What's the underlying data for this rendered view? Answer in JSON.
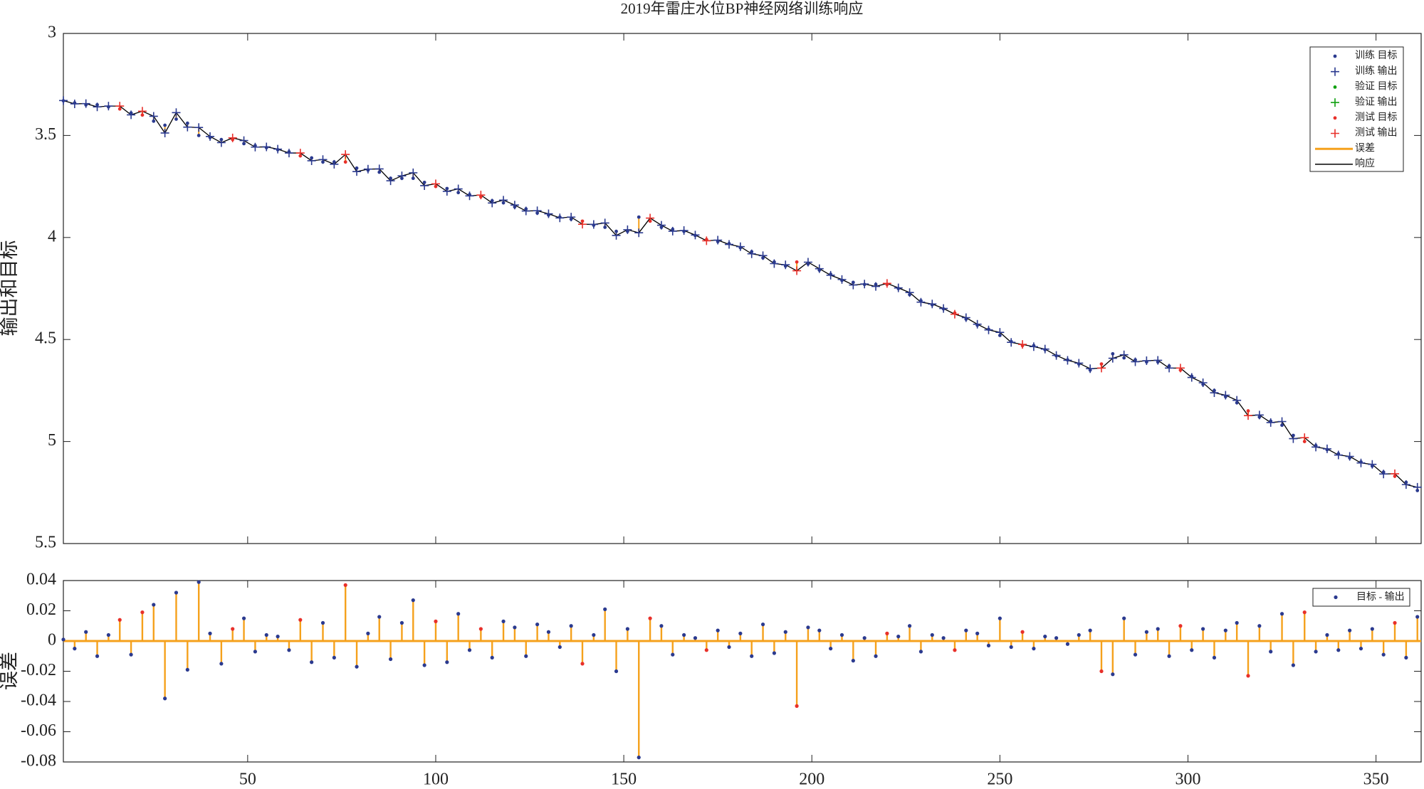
{
  "chart_data": [
    {
      "type": "response",
      "title": "2019年雷庄水位BP神经网络训练响应",
      "ylabel": "输出和目标",
      "xlim": [
        1,
        362
      ],
      "ylim": [
        3,
        5.5
      ],
      "yreverse": true,
      "yticks": [
        3,
        3.5,
        4,
        4.5,
        5,
        5.5
      ],
      "x": [
        1,
        4,
        7,
        10,
        13,
        16,
        19,
        22,
        25,
        28,
        31,
        34,
        37,
        40,
        43,
        46,
        49,
        52,
        55,
        58,
        61,
        64,
        67,
        70,
        73,
        76,
        79,
        82,
        85,
        88,
        91,
        94,
        97,
        100,
        103,
        106,
        109,
        112,
        115,
        118,
        121,
        124,
        127,
        130,
        133,
        136,
        139,
        142,
        145,
        148,
        151,
        154,
        157,
        160,
        163,
        166,
        169,
        172,
        175,
        178,
        181,
        184,
        187,
        190,
        193,
        196,
        199,
        202,
        205,
        208,
        211,
        214,
        217,
        220,
        223,
        226,
        229,
        232,
        235,
        238,
        241,
        244,
        247,
        250,
        253,
        256,
        259,
        262,
        265,
        268,
        271,
        274,
        277,
        280,
        283,
        286,
        289,
        292,
        295,
        298,
        301,
        304,
        307,
        310,
        313,
        316,
        319,
        322,
        325,
        328,
        331,
        334,
        337,
        340,
        343,
        346,
        349,
        352,
        355,
        358,
        361
      ],
      "series": [
        {
          "name": "训练 目标",
          "color": "#2b3a8f",
          "marker": "dot",
          "values": [
            3.33,
            3.34,
            3.35,
            3.35,
            3.36,
            null,
            3.39,
            null,
            3.43,
            3.45,
            3.42,
            3.44,
            3.5,
            3.51,
            3.52,
            null,
            3.54,
            3.55,
            3.56,
            3.57,
            3.58,
            null,
            3.61,
            3.63,
            3.63,
            null,
            3.66,
            3.67,
            3.68,
            3.71,
            3.71,
            3.71,
            3.73,
            null,
            3.76,
            3.78,
            3.79,
            null,
            3.82,
            3.83,
            3.85,
            3.86,
            3.88,
            3.89,
            3.9,
            3.91,
            null,
            3.94,
            3.95,
            3.97,
            3.97,
            3.9,
            null,
            3.95,
            3.96,
            3.97,
            3.99,
            null,
            4.02,
            4.03,
            4.05,
            4.07,
            4.1,
            4.12,
            4.14,
            null,
            4.13,
            4.16,
            4.18,
            4.21,
            4.22,
            4.23,
            4.23,
            null,
            4.25,
            4.28,
            4.31,
            4.33,
            4.35,
            null,
            4.4,
            4.43,
            4.45,
            4.48,
            4.51,
            null,
            4.53,
            4.55,
            4.58,
            4.6,
            4.62,
            4.65,
            null,
            4.57,
            4.59,
            4.6,
            4.61,
            4.61,
            4.63,
            null,
            4.68,
            4.72,
            4.75,
            4.78,
            4.81,
            null,
            4.88,
            4.9,
            4.92,
            4.97,
            null,
            5.02,
            5.04,
            5.06,
            5.08,
            5.1,
            5.12,
            5.15,
            null,
            5.2,
            5.24
          ]
        },
        {
          "name": "训练 输出",
          "color": "#2b3a8f",
          "marker": "plus",
          "values": [
            3.329,
            3.345,
            3.344,
            3.36,
            3.356,
            null,
            3.399,
            null,
            3.406,
            3.488,
            3.388,
            3.459,
            3.461,
            3.505,
            3.535,
            null,
            3.525,
            3.557,
            3.556,
            3.567,
            3.586,
            null,
            3.624,
            3.618,
            3.641,
            null,
            3.677,
            3.665,
            3.664,
            3.722,
            3.698,
            3.683,
            3.746,
            null,
            3.774,
            3.762,
            3.796,
            null,
            3.831,
            3.817,
            3.841,
            3.87,
            3.869,
            3.884,
            3.904,
            3.9,
            null,
            3.936,
            3.929,
            3.99,
            3.962,
            3.977,
            null,
            3.94,
            3.969,
            3.966,
            3.988,
            null,
            4.013,
            4.034,
            4.045,
            4.08,
            4.089,
            4.128,
            4.134,
            null,
            4.121,
            4.153,
            4.185,
            4.206,
            4.233,
            4.228,
            4.24,
            null,
            4.247,
            4.27,
            4.317,
            4.326,
            4.348,
            null,
            4.393,
            4.425,
            4.453,
            4.465,
            4.514,
            null,
            4.535,
            4.547,
            4.578,
            4.602,
            4.616,
            4.643,
            null,
            4.592,
            4.575,
            4.609,
            4.604,
            4.602,
            4.64,
            null,
            4.686,
            4.712,
            4.761,
            4.773,
            4.798,
            null,
            4.87,
            4.907,
            4.902,
            4.986,
            null,
            5.027,
            5.036,
            5.066,
            5.073,
            5.105,
            5.112,
            5.159,
            null,
            5.211,
            5.224
          ]
        },
        {
          "name": "验证 目标",
          "color": "#10a010",
          "marker": "dot"
        },
        {
          "name": "验证 输出",
          "color": "#10a010",
          "marker": "plus"
        },
        {
          "name": "测试 目标",
          "color": "#e8302a",
          "marker": "dot",
          "values": [
            null,
            null,
            null,
            null,
            null,
            3.37,
            null,
            3.4,
            null,
            null,
            null,
            null,
            null,
            null,
            null,
            3.52,
            null,
            null,
            null,
            null,
            null,
            3.6,
            null,
            null,
            null,
            3.63,
            null,
            null,
            null,
            null,
            null,
            null,
            null,
            3.75,
            null,
            null,
            null,
            3.8,
            null,
            null,
            null,
            null,
            null,
            null,
            null,
            null,
            3.92,
            null,
            null,
            null,
            null,
            null,
            3.92,
            null,
            null,
            null,
            null,
            4.01,
            null,
            null,
            null,
            null,
            null,
            null,
            null,
            4.12,
            null,
            null,
            null,
            null,
            null,
            null,
            null,
            4.23,
            null,
            null,
            null,
            null,
            null,
            4.37,
            null,
            null,
            null,
            null,
            null,
            4.53,
            null,
            null,
            null,
            null,
            null,
            null,
            4.62,
            null,
            null,
            null,
            null,
            null,
            null,
            4.65,
            null,
            null,
            null,
            null,
            null,
            4.85,
            null,
            null,
            null,
            null,
            5.0,
            null,
            null,
            null,
            null,
            null,
            null,
            null,
            5.17,
            null,
            null
          ]
        },
        {
          "name": "测试 输出",
          "color": "#e8302a",
          "marker": "plus",
          "values": [
            null,
            null,
            null,
            null,
            null,
            3.356,
            null,
            3.381,
            null,
            null,
            null,
            null,
            null,
            null,
            null,
            3.512,
            null,
            null,
            null,
            null,
            null,
            3.586,
            null,
            null,
            null,
            3.593,
            null,
            null,
            null,
            null,
            null,
            null,
            null,
            3.737,
            null,
            null,
            null,
            3.792,
            null,
            null,
            null,
            null,
            null,
            null,
            null,
            null,
            3.935,
            null,
            null,
            null,
            null,
            null,
            3.905,
            null,
            null,
            null,
            null,
            4.016,
            null,
            null,
            null,
            null,
            null,
            null,
            null,
            4.163,
            null,
            null,
            null,
            null,
            null,
            null,
            null,
            4.225,
            null,
            null,
            null,
            null,
            null,
            4.376,
            null,
            null,
            null,
            null,
            null,
            4.524,
            null,
            null,
            null,
            null,
            null,
            null,
            4.64,
            null,
            null,
            null,
            null,
            null,
            null,
            4.64,
            null,
            null,
            null,
            null,
            null,
            4.873,
            null,
            null,
            null,
            null,
            4.981,
            null,
            null,
            null,
            null,
            null,
            null,
            null,
            5.158,
            null,
            null
          ]
        }
      ],
      "error_line": {
        "name": "误差",
        "color": "#f5a11c"
      },
      "response_line": {
        "name": "响应",
        "color": "#000000"
      }
    },
    {
      "type": "stem",
      "ylabel": "误差",
      "name": "目标 - 输出",
      "color": "#f5a11c",
      "marker_color": "#2b3a8f",
      "xlim": [
        1,
        362
      ],
      "xticks": [
        50,
        100,
        150,
        200,
        250,
        300,
        350
      ],
      "ylim": [
        -0.08,
        0.04
      ],
      "yticks": [
        -0.08,
        -0.06,
        -0.04,
        -0.02,
        0,
        0.02,
        0.04
      ],
      "values": [
        0.001,
        -0.005,
        0.006,
        -0.01,
        0.004,
        0.014,
        -0.009,
        0.019,
        0.024,
        -0.038,
        0.032,
        -0.019,
        0.039,
        0.005,
        -0.015,
        0.008,
        0.015,
        -0.007,
        0.004,
        0.003,
        -0.006,
        0.014,
        -0.014,
        0.012,
        -0.011,
        0.037,
        -0.017,
        0.005,
        0.016,
        -0.012,
        0.012,
        0.027,
        -0.016,
        0.013,
        -0.014,
        0.018,
        -0.006,
        0.008,
        -0.011,
        0.013,
        0.009,
        -0.01,
        0.011,
        0.006,
        -0.004,
        0.01,
        -0.015,
        0.004,
        0.021,
        -0.02,
        0.008,
        -0.077,
        0.015,
        0.01,
        -0.009,
        0.004,
        0.002,
        -0.006,
        0.007,
        -0.004,
        0.005,
        -0.01,
        0.011,
        -0.008,
        0.006,
        -0.043,
        0.009,
        0.007,
        -0.005,
        0.004,
        -0.013,
        0.002,
        -0.01,
        0.005,
        0.003,
        0.01,
        -0.007,
        0.004,
        0.002,
        -0.006,
        0.007,
        0.005,
        -0.003,
        0.015,
        -0.004,
        0.006,
        -0.005,
        0.003,
        0.002,
        -0.002,
        0.004,
        0.007,
        -0.02,
        -0.022,
        0.015,
        -0.009,
        0.006,
        0.008,
        -0.01,
        0.01,
        -0.006,
        0.008,
        -0.011,
        0.007,
        0.012,
        -0.023,
        0.01,
        -0.007,
        0.018,
        -0.016,
        0.019,
        -0.007,
        0.004,
        -0.006,
        0.007,
        -0.005,
        0.008,
        -0.009,
        0.012,
        -0.011,
        0.016
      ]
    }
  ]
}
